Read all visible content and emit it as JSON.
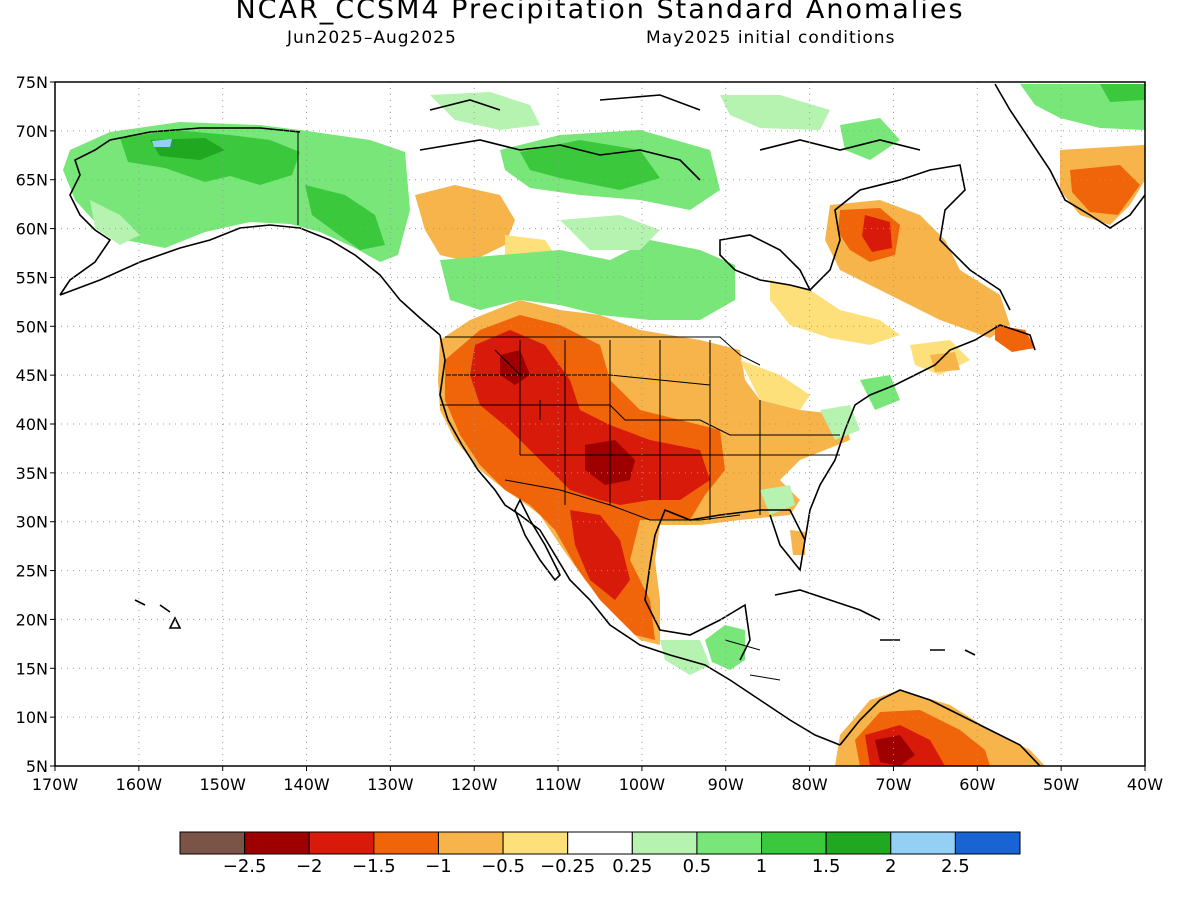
{
  "title": "NCAR_CCSM4 Precipitation Standard Anomalies",
  "subtitle_period": "Jun2025–Aug2025",
  "subtitle_init": "May2025 initial conditions",
  "lat_labels": [
    "75N",
    "70N",
    "65N",
    "60N",
    "55N",
    "50N",
    "45N",
    "40N",
    "35N",
    "30N",
    "25N",
    "20N",
    "15N",
    "10N",
    "5N"
  ],
  "lon_labels": [
    "170W",
    "160W",
    "150W",
    "140W",
    "130W",
    "120W",
    "110W",
    "100W",
    "90W",
    "80W",
    "70W",
    "60W",
    "50W",
    "40W"
  ],
  "colorbar": {
    "colors": [
      "#7b5448",
      "#9e0000",
      "#d81a0a",
      "#f0640a",
      "#f6b44a",
      "#fde07a",
      "#ffffff",
      "#b6f2b0",
      "#78e678",
      "#3cc83c",
      "#20a820",
      "#94d0f6",
      "#1864d4"
    ],
    "labels": [
      "−2.5",
      "−2",
      "−1.5",
      "−1",
      "−0.5",
      "−0.25",
      "0.25",
      "0.5",
      "1",
      "1.5",
      "2",
      "2.5"
    ]
  },
  "map": {
    "lon_range": [
      -170,
      -40
    ],
    "lat_range": [
      5,
      75
    ],
    "anomaly_regions": [
      {
        "name": "Alaska wet",
        "level": "1",
        "color": "#78e678"
      },
      {
        "name": "Alaska core",
        "level": "1.5",
        "color": "#3cc83c"
      },
      {
        "name": "Canadian Arctic wet",
        "level": "1",
        "color": "#78e678"
      },
      {
        "name": "Hudson Bay dry",
        "level": "-1",
        "color": "#f0640a"
      },
      {
        "name": "Greenland dry",
        "level": "-1",
        "color": "#f0640a"
      },
      {
        "name": "Western US dry",
        "level": "-1.5",
        "color": "#d81a0a"
      },
      {
        "name": "Southern Plains core",
        "level": "-2",
        "color": "#9e0000"
      },
      {
        "name": "Mexico dry",
        "level": "-1",
        "color": "#f0640a"
      },
      {
        "name": "Northern South America dry",
        "level": "-1.5",
        "color": "#d81a0a"
      }
    ]
  }
}
